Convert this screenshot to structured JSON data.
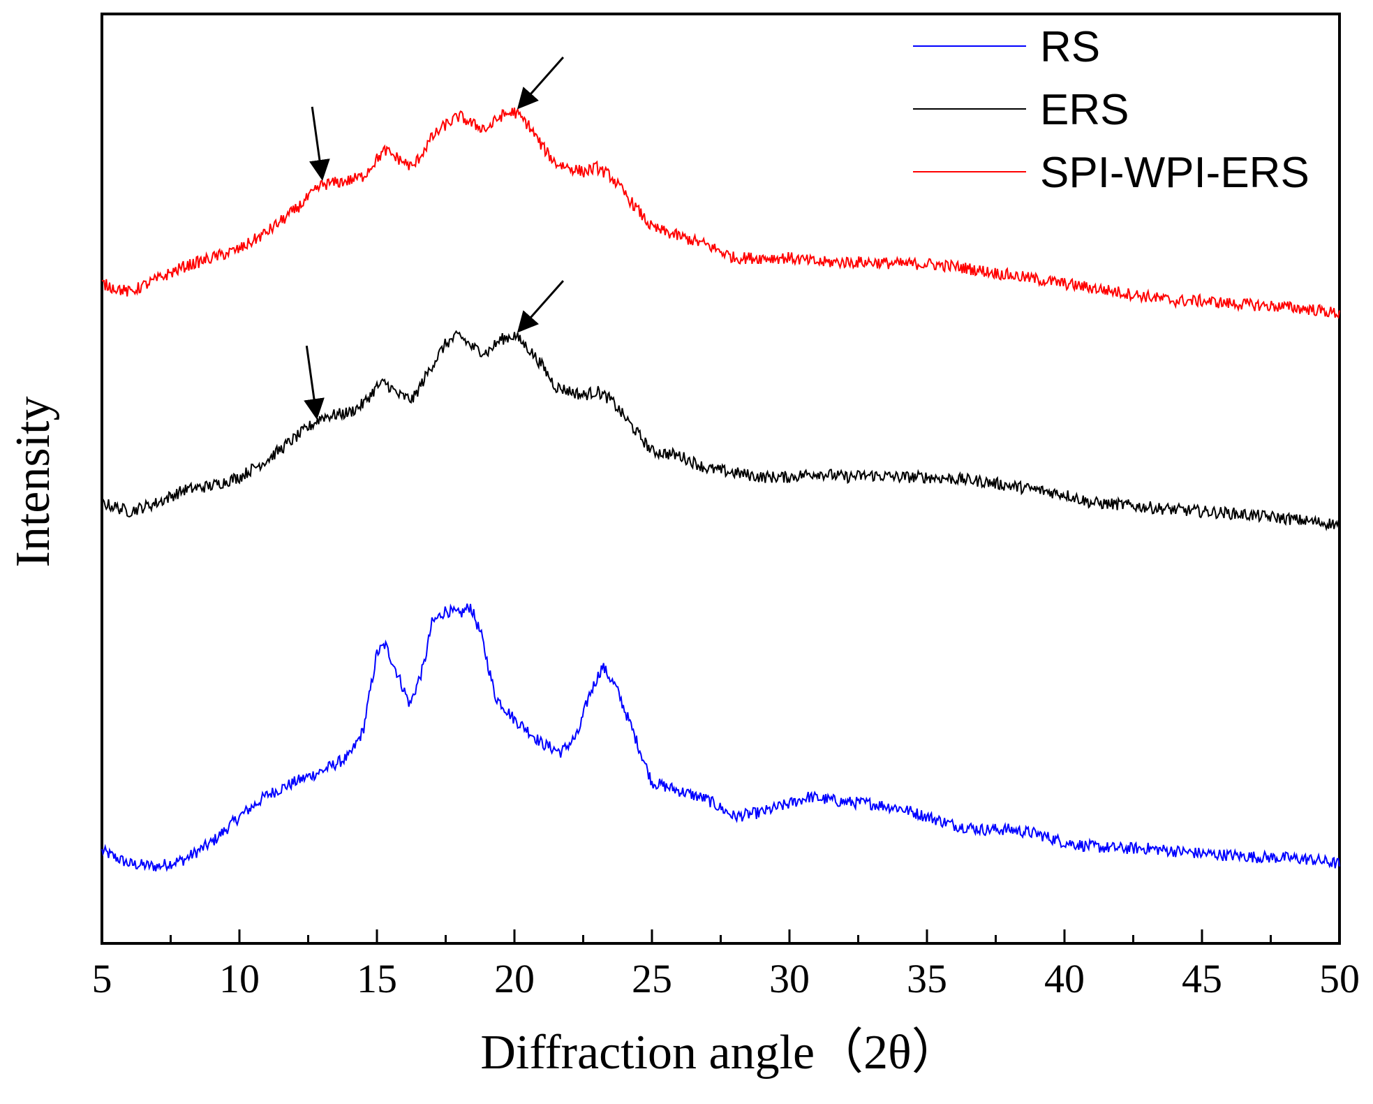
{
  "chart_data": {
    "type": "line",
    "title": "",
    "xlabel": "Diffraction angle（2θ）",
    "ylabel": "Intensity",
    "xlim": [
      5,
      50
    ],
    "ylim": [
      0,
      100
    ],
    "x_ticks": [
      5,
      10,
      15,
      20,
      25,
      30,
      35,
      40,
      45,
      50
    ],
    "y_ticks_shown": false,
    "grid": false,
    "legend_position": "top-right",
    "series": [
      {
        "name": "RS",
        "color": "#0000ff",
        "points": [
          [
            5,
            7.5
          ],
          [
            6,
            6.0
          ],
          [
            7,
            5.7
          ],
          [
            8,
            6.5
          ],
          [
            9,
            8.5
          ],
          [
            10,
            11.5
          ],
          [
            11,
            14.0
          ],
          [
            12,
            15.5
          ],
          [
            13,
            16.8
          ],
          [
            14,
            18.5
          ],
          [
            14.5,
            21.5
          ],
          [
            15,
            30.5
          ],
          [
            15.3,
            31.5
          ],
          [
            15.7,
            28.5
          ],
          [
            16.2,
            24.5
          ],
          [
            16.7,
            29.0
          ],
          [
            17,
            34.0
          ],
          [
            17.5,
            35.5
          ],
          [
            18,
            35.0
          ],
          [
            18.4,
            36.0
          ],
          [
            18.8,
            32.5
          ],
          [
            19.3,
            25.5
          ],
          [
            20,
            22.8
          ],
          [
            20.5,
            21.5
          ],
          [
            21,
            20.0
          ],
          [
            21.7,
            19.0
          ],
          [
            22.3,
            21.0
          ],
          [
            22.7,
            25.5
          ],
          [
            23.2,
            29.0
          ],
          [
            23.7,
            26.5
          ],
          [
            24.3,
            21.5
          ],
          [
            25,
            15.5
          ],
          [
            26,
            14.5
          ],
          [
            27,
            13.5
          ],
          [
            28,
            11.5
          ],
          [
            29,
            12.0
          ],
          [
            30,
            13.0
          ],
          [
            30.7,
            13.8
          ],
          [
            32,
            13.2
          ],
          [
            33,
            13.0
          ],
          [
            34,
            12.5
          ],
          [
            35,
            11.5
          ],
          [
            36,
            10.5
          ],
          [
            37,
            10.0
          ],
          [
            38,
            10.0
          ],
          [
            39,
            9.5
          ],
          [
            40,
            8.5
          ],
          [
            41,
            8.0
          ],
          [
            42,
            7.8
          ],
          [
            43,
            7.8
          ],
          [
            44,
            7.5
          ],
          [
            45,
            7.2
          ],
          [
            46,
            7.0
          ],
          [
            47,
            6.8
          ],
          [
            48,
            6.7
          ],
          [
            49,
            6.5
          ],
          [
            50,
            6.0
          ]
        ]
      },
      {
        "name": "ERS",
        "color": "#000000",
        "points": [
          [
            5,
            48.0
          ],
          [
            6,
            47.0
          ],
          [
            7,
            48.0
          ],
          [
            8,
            49.5
          ],
          [
            9,
            50.0
          ],
          [
            10,
            51.0
          ],
          [
            11,
            53.0
          ],
          [
            12,
            55.5
          ],
          [
            13,
            58.0
          ],
          [
            14,
            58.5
          ],
          [
            14.5,
            59.5
          ],
          [
            15,
            61.5
          ],
          [
            15.3,
            62.0
          ],
          [
            15.8,
            60.5
          ],
          [
            16.3,
            60.0
          ],
          [
            17,
            64.0
          ],
          [
            17.5,
            66.5
          ],
          [
            18,
            67.5
          ],
          [
            18.5,
            66.0
          ],
          [
            19,
            65.5
          ],
          [
            19.5,
            67.0
          ],
          [
            20,
            67.5
          ],
          [
            20.5,
            66.0
          ],
          [
            21,
            64.0
          ],
          [
            21.5,
            61.5
          ],
          [
            22,
            61.0
          ],
          [
            22.5,
            60.5
          ],
          [
            23,
            61.0
          ],
          [
            23.5,
            60.0
          ],
          [
            24,
            58.0
          ],
          [
            25,
            54.0
          ],
          [
            26,
            53.5
          ],
          [
            27,
            52.0
          ],
          [
            28,
            51.5
          ],
          [
            29,
            51.0
          ],
          [
            30,
            51.0
          ],
          [
            31,
            51.5
          ],
          [
            32,
            51.0
          ],
          [
            33,
            51.2
          ],
          [
            34,
            51.0
          ],
          [
            35,
            51.0
          ],
          [
            36,
            50.8
          ],
          [
            37,
            50.5
          ],
          [
            38,
            50.0
          ],
          [
            39,
            49.5
          ],
          [
            40,
            49.0
          ],
          [
            41,
            48.0
          ],
          [
            42,
            47.8
          ],
          [
            43,
            47.5
          ],
          [
            44,
            47.2
          ],
          [
            45,
            47.0
          ],
          [
            46,
            46.8
          ],
          [
            47,
            46.5
          ],
          [
            48,
            46.2
          ],
          [
            49,
            45.8
          ],
          [
            50,
            45.5
          ]
        ]
      },
      {
        "name": "SPI-WPI-ERS",
        "color": "#ff0000",
        "points": [
          [
            5,
            73.5
          ],
          [
            6,
            72.5
          ],
          [
            7,
            74.0
          ],
          [
            8,
            75.5
          ],
          [
            9,
            76.5
          ],
          [
            10,
            77.5
          ],
          [
            11,
            79.5
          ],
          [
            12,
            82.0
          ],
          [
            13,
            85.0
          ],
          [
            14,
            85.5
          ],
          [
            14.5,
            86.0
          ],
          [
            15,
            88.0
          ],
          [
            15.3,
            89.0
          ],
          [
            15.8,
            88.0
          ],
          [
            16.3,
            87.0
          ],
          [
            17,
            90.5
          ],
          [
            17.5,
            92.0
          ],
          [
            18,
            93.0
          ],
          [
            18.5,
            92.0
          ],
          [
            19,
            91.5
          ],
          [
            19.5,
            93.0
          ],
          [
            20,
            93.5
          ],
          [
            20.5,
            92.0
          ],
          [
            21,
            89.5
          ],
          [
            21.5,
            87.5
          ],
          [
            22,
            87.0
          ],
          [
            22.5,
            86.5
          ],
          [
            23,
            87.0
          ],
          [
            23.5,
            86.0
          ],
          [
            24,
            84.0
          ],
          [
            25,
            80.0
          ],
          [
            26,
            79.0
          ],
          [
            27,
            78.0
          ],
          [
            28,
            76.5
          ],
          [
            29,
            76.5
          ],
          [
            30,
            76.5
          ],
          [
            31,
            76.0
          ],
          [
            32,
            76.0
          ],
          [
            33,
            76.0
          ],
          [
            34,
            75.8
          ],
          [
            35,
            75.8
          ],
          [
            36,
            75.5
          ],
          [
            37,
            75.0
          ],
          [
            38,
            74.5
          ],
          [
            39,
            74.0
          ],
          [
            40,
            73.5
          ],
          [
            41,
            73.0
          ],
          [
            42,
            72.5
          ],
          [
            43,
            72.0
          ],
          [
            44,
            71.5
          ],
          [
            45,
            71.5
          ],
          [
            46,
            71.2
          ],
          [
            47,
            71.0
          ],
          [
            48,
            70.8
          ],
          [
            49,
            70.5
          ],
          [
            50,
            70.0
          ]
        ]
      }
    ],
    "annotations": [
      {
        "type": "arrow",
        "series": "SPI-WPI-ERS",
        "x": 13.0,
        "y": 85.3,
        "direction": "down"
      },
      {
        "type": "arrow",
        "series": "SPI-WPI-ERS",
        "x": 20.2,
        "y": 93.5,
        "direction": "down-left"
      },
      {
        "type": "arrow",
        "series": "ERS",
        "x": 12.8,
        "y": 57.5,
        "direction": "down"
      },
      {
        "type": "arrow",
        "series": "ERS",
        "x": 20.2,
        "y": 67.5,
        "direction": "down-left"
      }
    ]
  }
}
